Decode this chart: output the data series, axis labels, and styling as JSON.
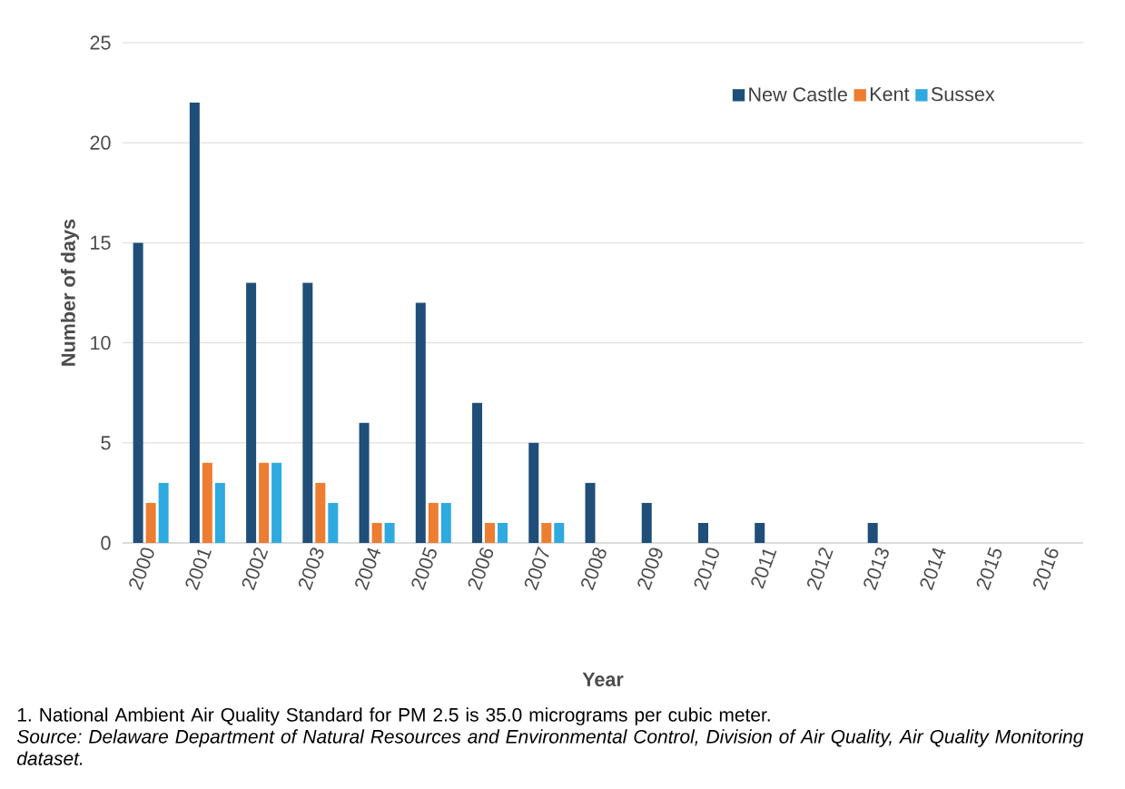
{
  "chart_data": {
    "type": "bar",
    "xlabel": "Year",
    "ylabel": "Number of days",
    "categories": [
      "2000",
      "2001",
      "2002",
      "2003",
      "2004",
      "2005",
      "2006",
      "2007",
      "2008",
      "2009",
      "2010",
      "2011",
      "2012",
      "2013",
      "2014",
      "2015",
      "2016"
    ],
    "series": [
      {
        "name": "New Castle",
        "color": "#1f4e79",
        "values": [
          15,
          22,
          13,
          13,
          6,
          12,
          7,
          5,
          3,
          2,
          1,
          1,
          0,
          1,
          0,
          0,
          0
        ]
      },
      {
        "name": "Kent",
        "color": "#ed7d31",
        "values": [
          2,
          4,
          4,
          3,
          1,
          2,
          1,
          1,
          0,
          0,
          0,
          0,
          0,
          0,
          0,
          0,
          0
        ]
      },
      {
        "name": "Sussex",
        "color": "#2eaae1",
        "values": [
          3,
          3,
          4,
          2,
          1,
          2,
          1,
          1,
          0,
          0,
          0,
          0,
          0,
          0,
          0,
          0,
          0
        ]
      }
    ],
    "ylim": [
      0,
      25
    ],
    "yticks": [
      0,
      5,
      10,
      15,
      20,
      25
    ],
    "grid": "y",
    "legend": "top right",
    "annotations": [
      "1. National Ambient Air Quality Standard for PM 2.5 is 35.0 micrograms per cubic meter.",
      "Source: Delaware Department of Natural Resources and Environmental Control, Division of Air Quality, Air Quality Monitoring dataset."
    ]
  }
}
